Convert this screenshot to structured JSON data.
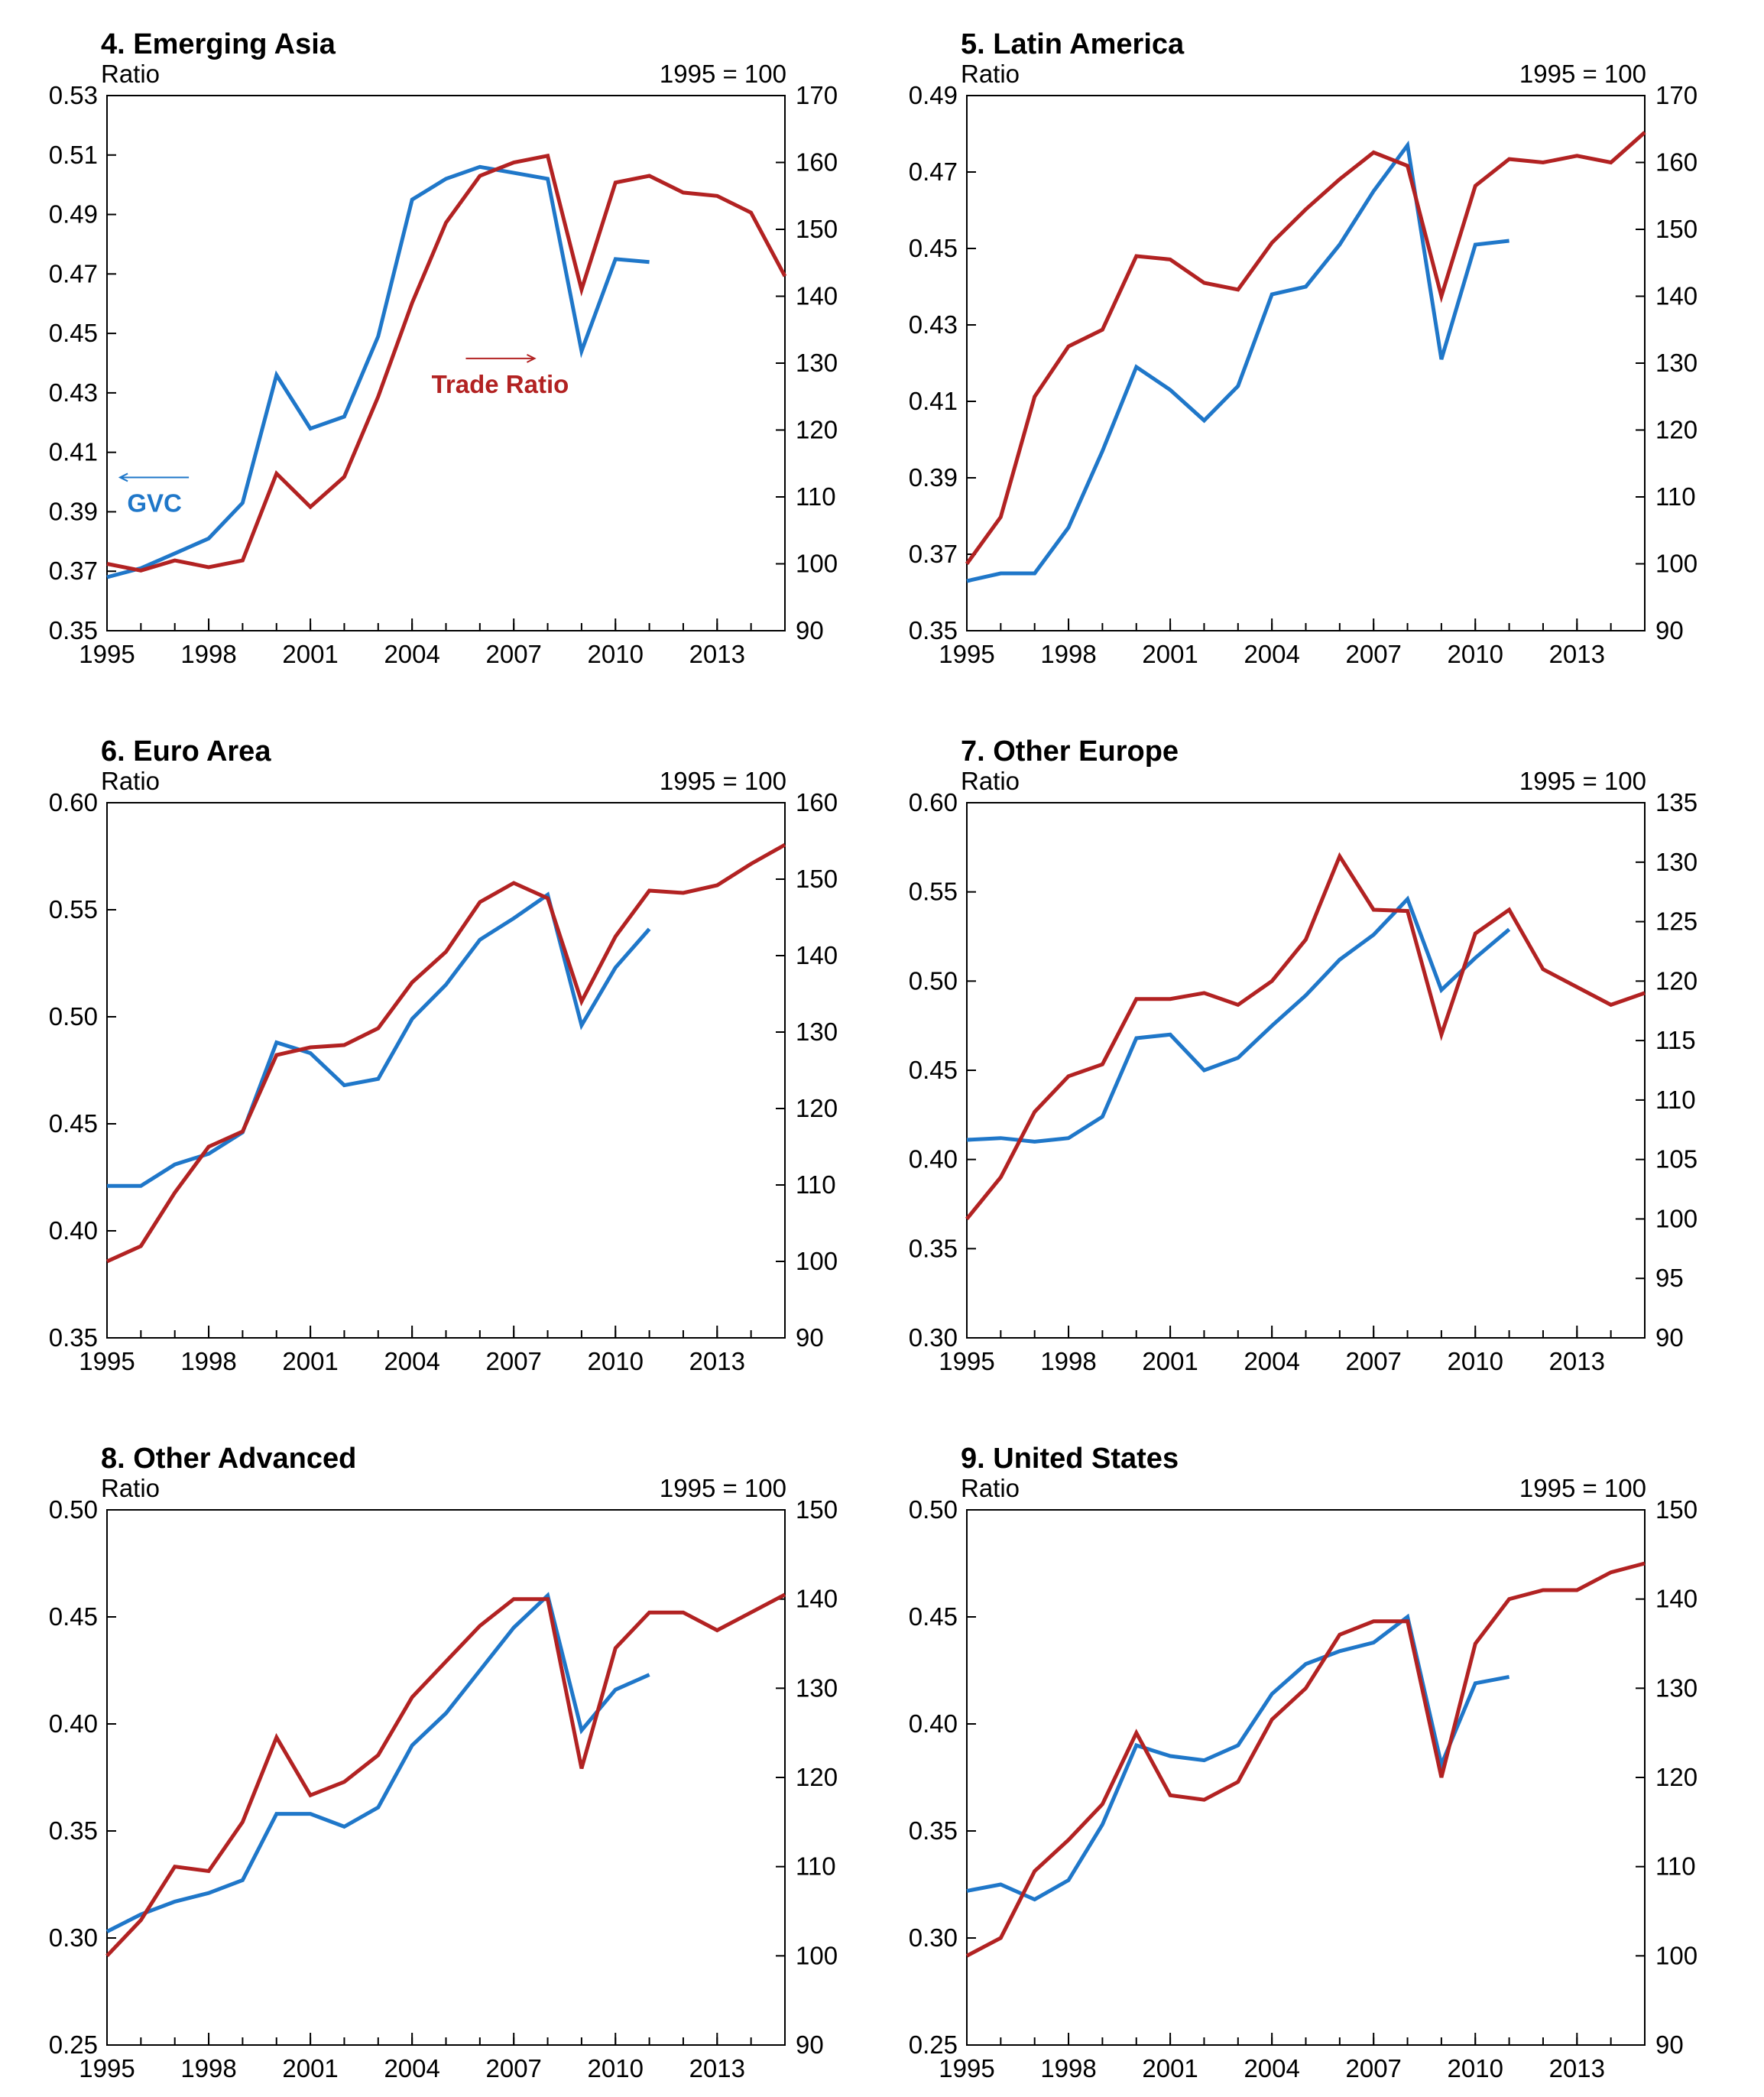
{
  "chart_data": [
    {
      "type": "line",
      "title": "4. Emerging Asia",
      "left_unit": "Ratio",
      "right_unit": "1995 = 100",
      "x_ticks": [
        "1995",
        "1998",
        "2001",
        "2004",
        "2007",
        "2010",
        "2013"
      ],
      "xlim": [
        1995,
        2015
      ],
      "ylim_left": [
        0.35,
        0.53
      ],
      "ylim_right": [
        90,
        170
      ],
      "y_ticks_left": [
        "0.35",
        "0.37",
        "0.39",
        "0.41",
        "0.43",
        "0.45",
        "0.47",
        "0.49",
        "0.51",
        "0.53"
      ],
      "y_ticks_right": [
        "90",
        "100",
        "110",
        "120",
        "130",
        "140",
        "150",
        "160",
        "170"
      ],
      "annotations": [
        {
          "text": "GVC",
          "color": "#1f77c9",
          "x": 1996.4,
          "y_left": 0.39,
          "axis": "left"
        },
        {
          "text": "Trade Ratio",
          "color": "#b22222",
          "x": 2006.6,
          "y_left": 0.43,
          "axis": "right"
        }
      ],
      "series": [
        {
          "name": "GVC",
          "axis": "left",
          "color": "#1f77c9",
          "x": [
            1995,
            1996,
            1997,
            1998,
            1999,
            2000,
            2001,
            2002,
            2003,
            2004,
            2005,
            2006,
            2007,
            2008,
            2009,
            2010,
            2011
          ],
          "values": [
            0.368,
            0.371,
            0.376,
            0.381,
            0.393,
            0.436,
            0.418,
            0.422,
            0.449,
            0.495,
            0.502,
            0.506,
            0.504,
            0.502,
            0.444,
            0.475,
            0.474
          ]
        },
        {
          "name": "Trade Ratio",
          "axis": "right",
          "color": "#b22222",
          "x": [
            1995,
            1996,
            1997,
            1998,
            1999,
            2000,
            2001,
            2002,
            2003,
            2004,
            2005,
            2006,
            2007,
            2008,
            2009,
            2010,
            2011,
            2012,
            2013,
            2014,
            2015
          ],
          "values": [
            100,
            99,
            100.5,
            99.5,
            100.5,
            113.5,
            108.5,
            113,
            125,
            139,
            151,
            158,
            160,
            161,
            141,
            157,
            158,
            155.5,
            155,
            152.5,
            143
          ]
        }
      ]
    },
    {
      "type": "line",
      "title": "5. Latin America",
      "left_unit": "Ratio",
      "right_unit": "1995 = 100",
      "x_ticks": [
        "1995",
        "1998",
        "2001",
        "2004",
        "2007",
        "2010",
        "2013"
      ],
      "xlim": [
        1995,
        2015
      ],
      "ylim_left": [
        0.35,
        0.49
      ],
      "ylim_right": [
        90,
        170
      ],
      "y_ticks_left": [
        "0.35",
        "0.37",
        "0.39",
        "0.41",
        "0.43",
        "0.45",
        "0.47",
        "0.49"
      ],
      "y_ticks_right": [
        "90",
        "100",
        "110",
        "120",
        "130",
        "140",
        "150",
        "160",
        "170"
      ],
      "annotations": [],
      "series": [
        {
          "name": "GVC",
          "axis": "left",
          "color": "#1f77c9",
          "x": [
            1995,
            1996,
            1997,
            1998,
            1999,
            2000,
            2001,
            2002,
            2003,
            2004,
            2005,
            2006,
            2007,
            2008,
            2009,
            2010,
            2011
          ],
          "values": [
            0.363,
            0.365,
            0.365,
            0.377,
            0.397,
            0.419,
            0.413,
            0.405,
            0.414,
            0.438,
            0.44,
            0.451,
            0.465,
            0.477,
            0.421,
            0.451,
            0.452
          ]
        },
        {
          "name": "Trade Ratio",
          "axis": "right",
          "color": "#b22222",
          "x": [
            1995,
            1996,
            1997,
            1998,
            1999,
            2000,
            2001,
            2002,
            2003,
            2004,
            2005,
            2006,
            2007,
            2008,
            2009,
            2010,
            2011,
            2012,
            2013,
            2014,
            2015
          ],
          "values": [
            100,
            107,
            125,
            132.5,
            135,
            146,
            145.5,
            142,
            141,
            148,
            153,
            157.5,
            161.5,
            159.5,
            140,
            156.5,
            160.5,
            160,
            161,
            160,
            164.5
          ]
        }
      ]
    },
    {
      "type": "line",
      "title": "6. Euro Area",
      "left_unit": "Ratio",
      "right_unit": "1995 = 100",
      "x_ticks": [
        "1995",
        "1998",
        "2001",
        "2004",
        "2007",
        "2010",
        "2013"
      ],
      "xlim": [
        1995,
        2015
      ],
      "ylim_left": [
        0.35,
        0.6
      ],
      "ylim_right": [
        90,
        160
      ],
      "y_ticks_left": [
        "0.35",
        "0.40",
        "0.45",
        "0.50",
        "0.55",
        "0.60"
      ],
      "y_ticks_right": [
        "90",
        "100",
        "110",
        "120",
        "130",
        "140",
        "150",
        "160"
      ],
      "annotations": [],
      "series": [
        {
          "name": "GVC",
          "axis": "left",
          "color": "#1f77c9",
          "x": [
            1995,
            1996,
            1997,
            1998,
            1999,
            2000,
            2001,
            2002,
            2003,
            2004,
            2005,
            2006,
            2007,
            2008,
            2009,
            2010,
            2011
          ],
          "values": [
            0.421,
            0.421,
            0.431,
            0.436,
            0.446,
            0.488,
            0.483,
            0.468,
            0.471,
            0.499,
            0.515,
            0.536,
            0.546,
            0.557,
            0.496,
            0.523,
            0.541
          ]
        },
        {
          "name": "Trade Ratio",
          "axis": "right",
          "color": "#b22222",
          "x": [
            1995,
            1996,
            1997,
            1998,
            1999,
            2000,
            2001,
            2002,
            2003,
            2004,
            2005,
            2006,
            2007,
            2008,
            2009,
            2010,
            2011,
            2012,
            2013,
            2014,
            2015
          ],
          "values": [
            100,
            102,
            109,
            115,
            117,
            127,
            128,
            128.3,
            130.5,
            136.5,
            140.5,
            147,
            149.5,
            147.5,
            134,
            142.5,
            148.5,
            148.2,
            149.2,
            152,
            154.5
          ]
        }
      ]
    },
    {
      "type": "line",
      "title": "7. Other Europe",
      "left_unit": "Ratio",
      "right_unit": "1995 = 100",
      "x_ticks": [
        "1995",
        "1998",
        "2001",
        "2004",
        "2007",
        "2010",
        "2013"
      ],
      "xlim": [
        1995,
        2015
      ],
      "ylim_left": [
        0.3,
        0.6
      ],
      "ylim_right": [
        90,
        135
      ],
      "y_ticks_left": [
        "0.30",
        "0.35",
        "0.40",
        "0.45",
        "0.50",
        "0.55",
        "0.60"
      ],
      "y_ticks_right": [
        "90",
        "95",
        "100",
        "105",
        "110",
        "115",
        "120",
        "125",
        "130",
        "135"
      ],
      "annotations": [],
      "series": [
        {
          "name": "GVC",
          "axis": "left",
          "color": "#1f77c9",
          "x": [
            1995,
            1996,
            1997,
            1998,
            1999,
            2000,
            2001,
            2002,
            2003,
            2004,
            2005,
            2006,
            2007,
            2008,
            2009,
            2010,
            2011
          ],
          "values": [
            0.411,
            0.412,
            0.41,
            0.412,
            0.424,
            0.468,
            0.47,
            0.45,
            0.457,
            0.475,
            0.492,
            0.512,
            0.526,
            0.546,
            0.495,
            0.513,
            0.529
          ]
        },
        {
          "name": "Trade Ratio",
          "axis": "right",
          "color": "#b22222",
          "x": [
            1995,
            1996,
            1997,
            1998,
            1999,
            2000,
            2001,
            2002,
            2003,
            2004,
            2005,
            2006,
            2007,
            2008,
            2009,
            2010,
            2011,
            2012,
            2013,
            2014,
            2015
          ],
          "values": [
            100,
            103.5,
            109,
            112,
            113,
            118.5,
            118.5,
            119,
            118,
            120,
            123.5,
            130.5,
            126,
            125.9,
            115.5,
            124,
            126,
            121,
            119.5,
            118,
            119
          ]
        }
      ]
    },
    {
      "type": "line",
      "title": "8. Other Advanced",
      "left_unit": "Ratio",
      "right_unit": "1995 = 100",
      "x_ticks": [
        "1995",
        "1998",
        "2001",
        "2004",
        "2007",
        "2010",
        "2013"
      ],
      "xlim": [
        1995,
        2015
      ],
      "ylim_left": [
        0.25,
        0.5
      ],
      "ylim_right": [
        90,
        150
      ],
      "y_ticks_left": [
        "0.25",
        "0.30",
        "0.35",
        "0.40",
        "0.45",
        "0.50"
      ],
      "y_ticks_right": [
        "90",
        "100",
        "110",
        "120",
        "130",
        "140",
        "150"
      ],
      "annotations": [],
      "series": [
        {
          "name": "GVC",
          "axis": "left",
          "color": "#1f77c9",
          "x": [
            1995,
            1996,
            1997,
            1998,
            1999,
            2000,
            2001,
            2002,
            2003,
            2004,
            2005,
            2006,
            2007,
            2008,
            2009,
            2010,
            2011
          ],
          "values": [
            0.303,
            0.311,
            0.317,
            0.321,
            0.327,
            0.358,
            0.358,
            0.352,
            0.361,
            0.39,
            0.405,
            0.425,
            0.445,
            0.46,
            0.397,
            0.416,
            0.423
          ]
        },
        {
          "name": "Trade Ratio",
          "axis": "right",
          "color": "#b22222",
          "x": [
            1995,
            1996,
            1997,
            1998,
            1999,
            2000,
            2001,
            2002,
            2003,
            2004,
            2005,
            2006,
            2007,
            2008,
            2009,
            2010,
            2011,
            2012,
            2013,
            2014,
            2015
          ],
          "values": [
            100,
            104,
            110,
            109.5,
            115,
            124.5,
            118,
            119.5,
            122.5,
            129,
            133,
            137,
            140,
            140,
            121,
            134.5,
            138.5,
            138.5,
            136.5,
            138.5,
            140.5
          ]
        }
      ]
    },
    {
      "type": "line",
      "title": "9. United States",
      "left_unit": "Ratio",
      "right_unit": "1995 = 100",
      "x_ticks": [
        "1995",
        "1998",
        "2001",
        "2004",
        "2007",
        "2010",
        "2013"
      ],
      "xlim": [
        1995,
        2015
      ],
      "ylim_left": [
        0.25,
        0.5
      ],
      "ylim_right": [
        90,
        150
      ],
      "y_ticks_left": [
        "0.25",
        "0.30",
        "0.35",
        "0.40",
        "0.45",
        "0.50"
      ],
      "y_ticks_right": [
        "90",
        "100",
        "110",
        "120",
        "130",
        "140",
        "150"
      ],
      "annotations": [],
      "series": [
        {
          "name": "GVC",
          "axis": "left",
          "color": "#1f77c9",
          "x": [
            1995,
            1996,
            1997,
            1998,
            1999,
            2000,
            2001,
            2002,
            2003,
            2004,
            2005,
            2006,
            2007,
            2008,
            2009,
            2010,
            2011
          ],
          "values": [
            0.322,
            0.325,
            0.318,
            0.327,
            0.353,
            0.39,
            0.385,
            0.383,
            0.39,
            0.414,
            0.428,
            0.434,
            0.438,
            0.45,
            0.381,
            0.419,
            0.422
          ]
        },
        {
          "name": "Trade Ratio",
          "axis": "right",
          "color": "#b22222",
          "x": [
            1995,
            1996,
            1997,
            1998,
            1999,
            2000,
            2001,
            2002,
            2003,
            2004,
            2005,
            2006,
            2007,
            2008,
            2009,
            2010,
            2011,
            2012,
            2013,
            2014,
            2015
          ],
          "values": [
            100,
            102,
            109.5,
            113,
            117,
            125,
            118,
            117.5,
            119.5,
            126.5,
            130,
            136,
            137.5,
            137.5,
            120,
            135,
            140,
            141,
            141,
            143,
            144
          ]
        }
      ]
    }
  ]
}
